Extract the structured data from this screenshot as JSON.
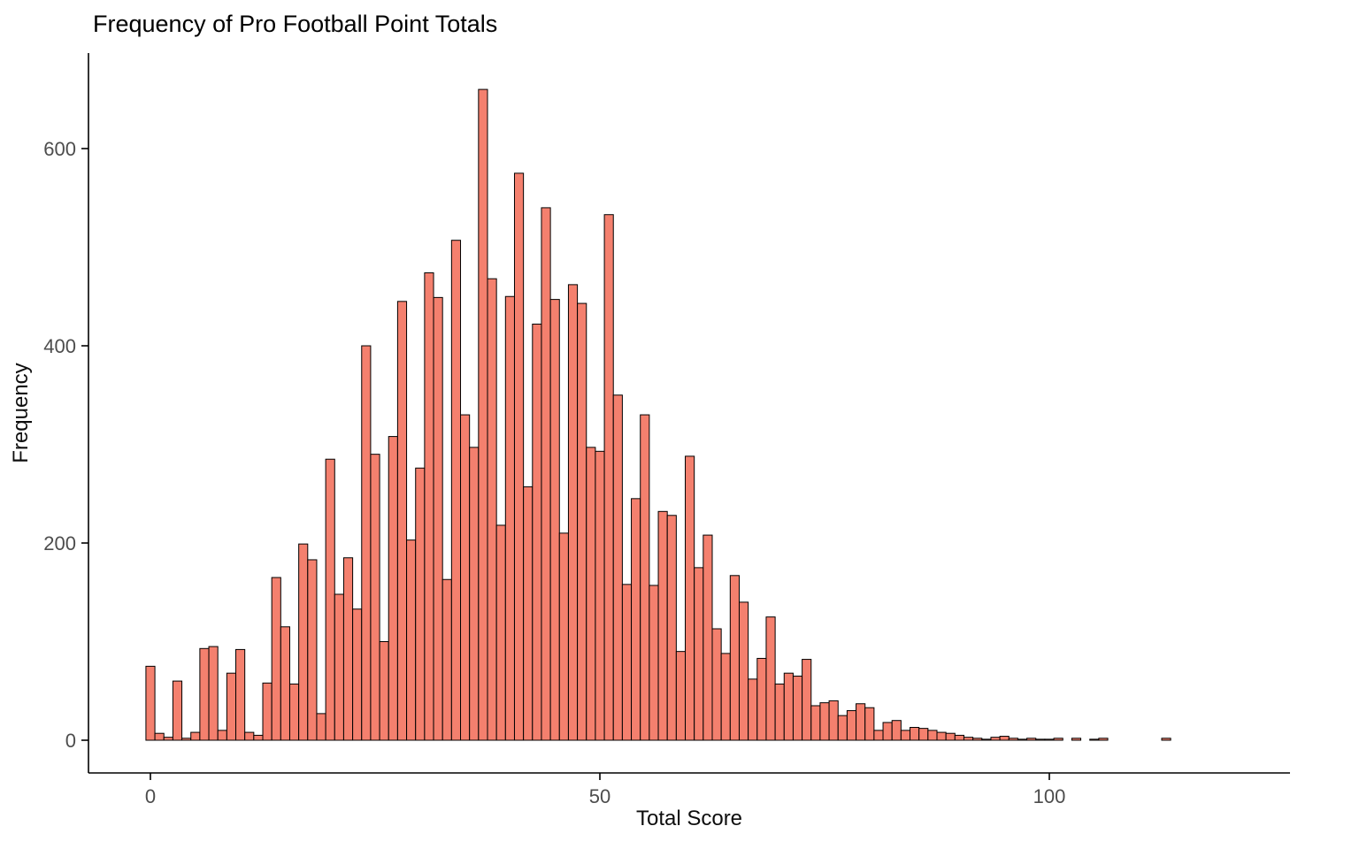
{
  "chart_data": {
    "type": "bar",
    "subtype": "histogram",
    "title": "Frequency of Pro Football Point Totals",
    "xlabel": "Total Score",
    "ylabel": "Frequency",
    "x_ticks": [
      0,
      50,
      100
    ],
    "y_ticks": [
      0,
      200,
      400,
      600
    ],
    "xlim": [
      -6,
      127
    ],
    "ylim": [
      0,
      695
    ],
    "bin_width": 1,
    "x_start": 0,
    "grid": "off",
    "legend": "none",
    "values": [
      75,
      7,
      3,
      60,
      2,
      8,
      93,
      95,
      10,
      68,
      92,
      8,
      5,
      58,
      165,
      115,
      57,
      199,
      183,
      27,
      285,
      148,
      185,
      133,
      400,
      290,
      100,
      308,
      445,
      203,
      276,
      474,
      449,
      163,
      507,
      330,
      297,
      660,
      468,
      218,
      450,
      575,
      257,
      422,
      540,
      447,
      210,
      462,
      443,
      297,
      293,
      533,
      350,
      158,
      245,
      330,
      157,
      232,
      228,
      90,
      288,
      175,
      208,
      113,
      88,
      167,
      140,
      62,
      83,
      125,
      57,
      68,
      65,
      82,
      35,
      38,
      40,
      25,
      30,
      37,
      33,
      10,
      18,
      20,
      10,
      13,
      12,
      10,
      8,
      7,
      5,
      3,
      2,
      1,
      3,
      4,
      2,
      1,
      2,
      1,
      1,
      2,
      0,
      2,
      0,
      1,
      2,
      0,
      0,
      0,
      0,
      0,
      0,
      2
    ],
    "colors": {
      "bar_fill": "#F4806E",
      "bar_stroke": "#000000",
      "axis_line": "#000000",
      "tick_label": "#4D4D4D",
      "title_text": "#000000"
    }
  }
}
